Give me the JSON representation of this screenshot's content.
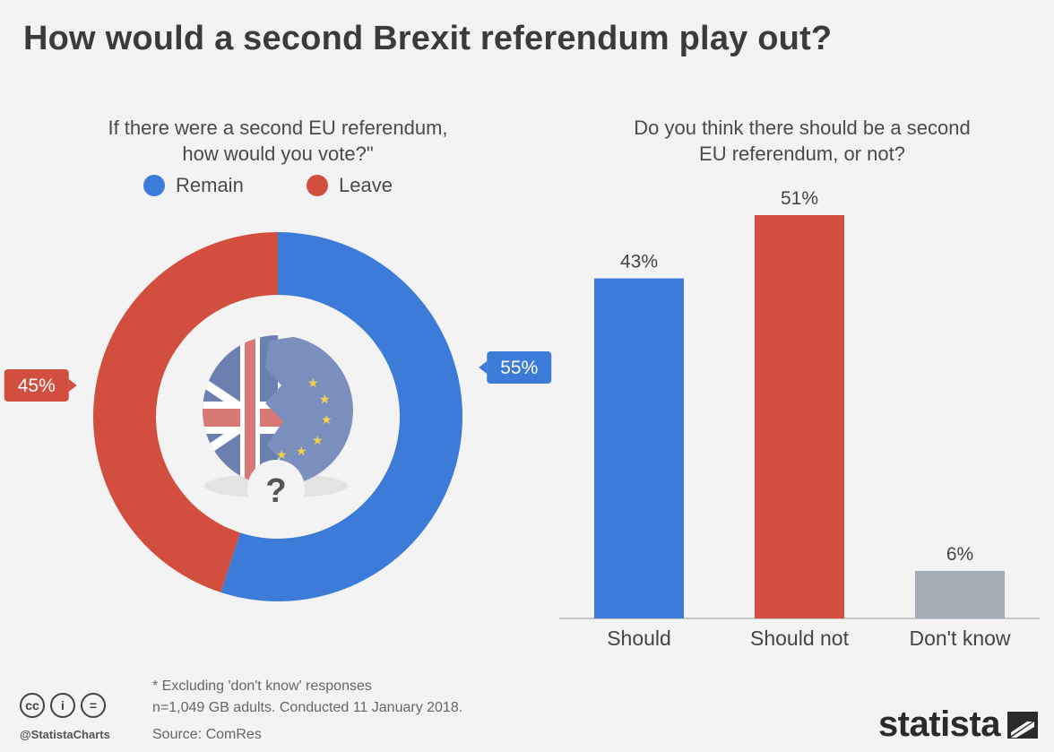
{
  "title": "How would a second Brexit referendum play out?",
  "colors": {
    "remain": "#3d7bd8",
    "leave": "#d24f40",
    "dont_know": "#a4acb5",
    "background": "#f3f3f3"
  },
  "chart_data": [
    {
      "type": "pie",
      "subtitle_line1": "If there were a second EU referendum,",
      "subtitle_line2": "how would you vote?\"",
      "legend": [
        "Remain",
        "Leave"
      ],
      "categories": [
        "Remain",
        "Leave"
      ],
      "values": [
        55,
        45
      ],
      "value_labels": [
        "55%",
        "45%"
      ],
      "style": "donut",
      "center_icon": "broken-union-jack-eu-flag-question-mark-icon"
    },
    {
      "type": "bar",
      "subtitle_line1": "Do you think there should be a second",
      "subtitle_line2": "EU referendum, or not?",
      "categories": [
        "Should",
        "Should not",
        "Don't know"
      ],
      "values": [
        43,
        51,
        6
      ],
      "value_labels": [
        "43%",
        "51%",
        "6%"
      ],
      "ylim": [
        0,
        51
      ],
      "grid": false
    }
  ],
  "footer": {
    "note1": "* Excluding 'don't know' responses",
    "note2": "n=1,049 GB adults. Conducted 11 January 2018.",
    "source": "Source: ComRes",
    "handle": "@StatistaCharts",
    "brand": "statista",
    "cc_icons": [
      "creative-commons-icon",
      "attribution-icon",
      "no-derivatives-icon"
    ]
  }
}
